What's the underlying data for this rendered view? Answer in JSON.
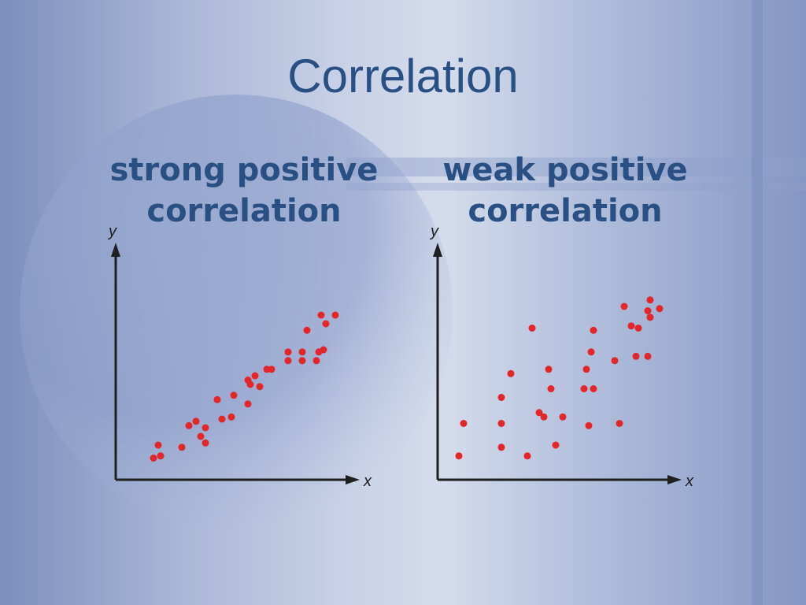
{
  "slide": {
    "title": "Correlation",
    "colors": {
      "title": "#2a4f82",
      "points": "#e3262a",
      "axes": "#1f1f1f"
    }
  },
  "chart_data": [
    {
      "type": "scatter",
      "title_lines": [
        "strong positive",
        "correlation"
      ],
      "xlabel": "x",
      "ylabel": "y",
      "grid": false,
      "xlim": [
        0,
        10
      ],
      "ylim": [
        0,
        10
      ],
      "x": [
        1.6,
        1.9,
        1.8,
        2.8,
        3.1,
        3.4,
        3.8,
        3.6,
        3.8,
        4.5,
        4.9,
        4.3,
        5.0,
        5.6,
        5.7,
        5.6,
        5.9,
        6.1,
        6.4,
        6.6,
        7.3,
        7.3,
        7.9,
        7.9,
        8.5,
        8.8,
        8.6,
        8.1,
        8.9,
        8.7,
        9.3
      ],
      "y": [
        1.0,
        1.1,
        1.6,
        1.5,
        2.5,
        2.7,
        1.7,
        2.0,
        2.4,
        2.8,
        2.9,
        3.7,
        3.9,
        3.5,
        4.4,
        4.6,
        4.8,
        4.3,
        5.1,
        5.1,
        5.5,
        5.9,
        5.5,
        5.9,
        5.5,
        6.0,
        5.9,
        6.9,
        7.2,
        7.6,
        7.6
      ]
    },
    {
      "type": "scatter",
      "title_lines": [
        "weak positive",
        "correlation"
      ],
      "xlabel": "x",
      "ylabel": "y",
      "grid": false,
      "xlim": [
        0,
        10
      ],
      "ylim": [
        0,
        10
      ],
      "x": [
        0.9,
        1.1,
        2.7,
        2.7,
        2.7,
        3.1,
        3.8,
        4.0,
        4.3,
        4.5,
        4.7,
        4.8,
        5.0,
        5.3,
        6.2,
        6.3,
        6.4,
        6.5,
        6.6,
        6.6,
        7.5,
        7.7,
        7.9,
        8.2,
        8.4,
        8.5,
        8.9,
        8.9,
        9.0,
        9.0,
        9.4
      ],
      "y": [
        1.1,
        2.6,
        1.5,
        2.6,
        3.8,
        4.9,
        1.1,
        7.0,
        3.1,
        2.9,
        5.1,
        4.2,
        1.6,
        2.9,
        4.2,
        5.1,
        2.5,
        5.9,
        4.2,
        6.9,
        5.5,
        2.6,
        8.0,
        7.1,
        5.7,
        7.0,
        7.8,
        5.7,
        8.3,
        7.5,
        7.9
      ]
    }
  ]
}
